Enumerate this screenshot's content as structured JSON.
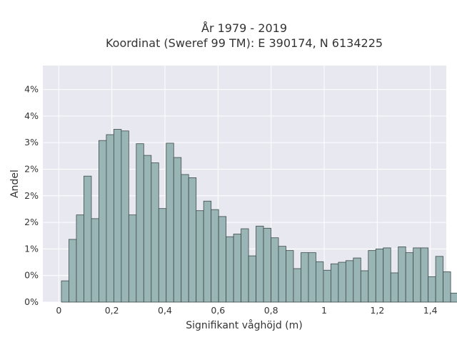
{
  "chart_data": {
    "type": "bar",
    "title": "År 1979 - 2019",
    "subtitle": "Koordinat (Sweref 99 TM): E 390174, N 6134225",
    "xlabel": "Signifikant våghöjd (m)",
    "ylabel": "Andel",
    "x_range": [
      -0.06,
      1.46
    ],
    "y_range": [
      0,
      4.45
    ],
    "grid": true,
    "bar_color": "#9ab5b5",
    "bar_edge_color": "#3d4a4a",
    "background_color": "#e8e8f0",
    "x_ticks": [
      {
        "value": 0,
        "label": "0"
      },
      {
        "value": 0.2,
        "label": "0,2"
      },
      {
        "value": 0.4,
        "label": "0,4"
      },
      {
        "value": 0.6,
        "label": "0,6"
      },
      {
        "value": 0.8,
        "label": "0,8"
      },
      {
        "value": 1.0,
        "label": "1"
      },
      {
        "value": 1.2,
        "label": "1,2"
      },
      {
        "value": 1.4,
        "label": "1,4"
      }
    ],
    "y_ticks": [
      {
        "value": 0,
        "label": "0%"
      },
      {
        "value": 0.5,
        "label": "0%"
      },
      {
        "value": 1.0,
        "label": "1%"
      },
      {
        "value": 1.5,
        "label": "2%"
      },
      {
        "value": 2.0,
        "label": "2%"
      },
      {
        "value": 2.5,
        "label": "2%"
      },
      {
        "value": 3.0,
        "label": "3%"
      },
      {
        "value": 3.5,
        "label": "4%"
      },
      {
        "value": 4.0,
        "label": "4%"
      }
    ],
    "bins": {
      "start": 0.01,
      "width": 0.0282,
      "values": [
        0.4,
        1.18,
        1.64,
        2.37,
        1.57,
        3.04,
        3.15,
        3.25,
        3.22,
        1.64,
        2.98,
        2.76,
        2.62,
        1.76,
        2.99,
        2.72,
        2.4,
        2.34,
        1.72,
        1.9,
        1.74,
        1.61,
        1.23,
        1.28,
        1.38,
        0.87,
        1.43,
        1.39,
        1.21,
        1.05,
        0.97,
        0.63,
        0.93,
        0.93,
        0.76,
        0.6,
        0.72,
        0.75,
        0.78,
        0.83,
        0.59,
        0.97,
        1.0,
        1.02,
        0.55,
        1.04,
        0.93,
        1.02,
        1.02,
        0.48,
        0.86,
        0.57,
        0.17,
        0.03
      ]
    }
  }
}
